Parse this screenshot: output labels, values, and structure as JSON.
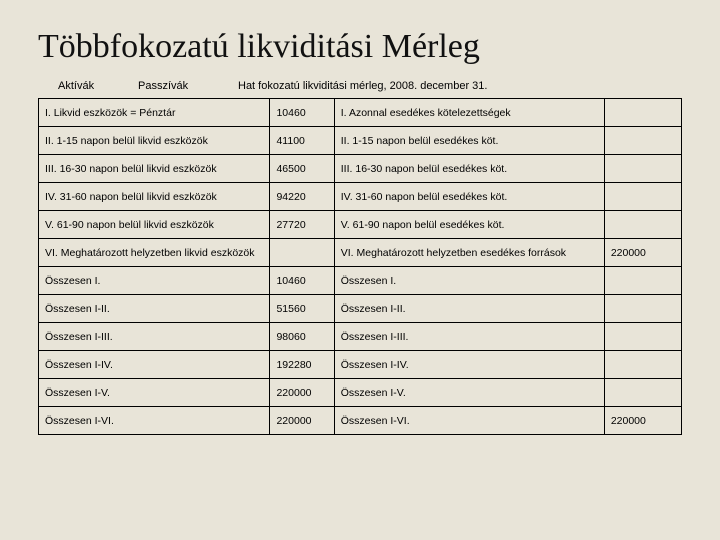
{
  "title": "Többfokozatú likviditási Mérleg",
  "header": {
    "left": "Aktívák",
    "mid": "Passzívák",
    "right": "Hat fokozatú likviditási mérleg, 2008. december 31."
  },
  "table": {
    "columns": [
      "asset_label",
      "asset_value",
      "liability_label",
      "liability_value"
    ],
    "col_widths_pct": [
      36,
      10,
      42,
      12
    ],
    "border_color": "#000000",
    "background_color": "#e8e4d8",
    "font_size_pt": 10.5,
    "rows": [
      [
        "I. Likvid eszközök = Pénztár",
        "10460",
        "I. Azonnal esedékes kötelezettségek",
        ""
      ],
      [
        "II. 1-15 napon belül likvid eszközök",
        "41100",
        "II. 1-15 napon belül esedékes köt.",
        ""
      ],
      [
        "III. 16-30 napon belül likvid eszközök",
        "46500",
        "III. 16-30 napon belül esedékes köt.",
        ""
      ],
      [
        "IV. 31-60 napon belül likvid eszközök",
        "94220",
        "IV. 31-60 napon belül esedékes köt.",
        ""
      ],
      [
        "V. 61-90 napon belül likvid eszközök",
        "27720",
        "V. 61-90 napon belül esedékes köt.",
        ""
      ],
      [
        "VI. Meghatározott helyzetben likvid eszközök",
        "",
        "VI. Meghatározott helyzetben esedékes források",
        "220000"
      ],
      [
        "Összesen I.",
        "10460",
        "Összesen I.",
        ""
      ],
      [
        "Összesen I-II.",
        "51560",
        "Összesen I-II.",
        ""
      ],
      [
        "Összesen I-III.",
        "98060",
        "Összesen I-III.",
        ""
      ],
      [
        "Összesen I-IV.",
        "192280",
        "Összesen I-IV.",
        ""
      ],
      [
        "Összesen I-V.",
        "220000",
        "Összesen I-V.",
        ""
      ],
      [
        "Összesen I-VI.",
        "220000",
        "Összesen I-VI.",
        "220000"
      ]
    ]
  }
}
